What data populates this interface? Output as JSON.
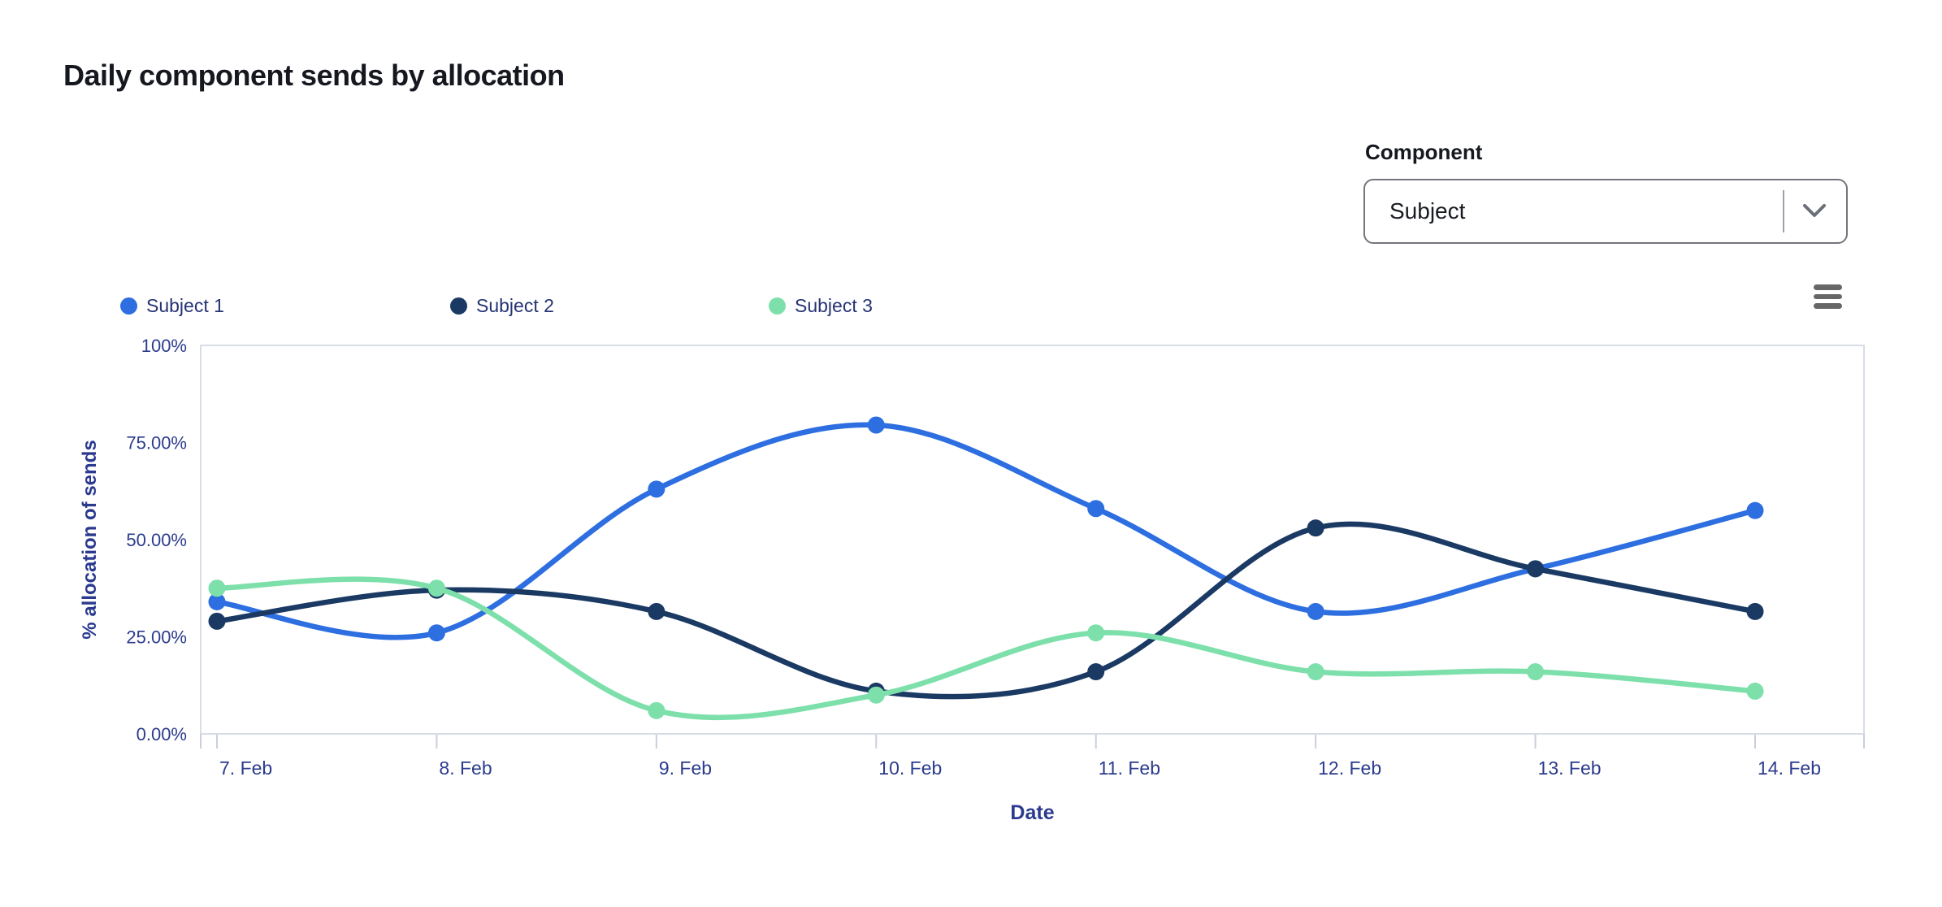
{
  "page": {
    "title": "Daily component sends by allocation"
  },
  "controls": {
    "component_label": "Component",
    "component_value": "Subject"
  },
  "colors": {
    "title_text": "#16181f",
    "control_label": "#15181f",
    "dropdown_text": "#181b21",
    "dropdown_border": "#74757c",
    "divider": "#9aa0a8",
    "chevron": "#6b7078",
    "legend_text": "#263374",
    "axis_tick_text": "#2c3c8d",
    "axis_title_text": "#2b3a8f",
    "plot_border": "#d8dce6",
    "tick_mark": "#c9cfdd",
    "menu_icon": "#676767"
  },
  "chart_data": {
    "type": "line",
    "subtype": "spline",
    "title": "",
    "xlabel": "Date",
    "ylabel": "% allocation of sends",
    "categories": [
      "7. Feb",
      "8. Feb",
      "9. Feb",
      "10. Feb",
      "11. Feb",
      "12. Feb",
      "13. Feb",
      "14. Feb"
    ],
    "series": [
      {
        "name": "Subject 1",
        "color": "#2d6ee0",
        "values": [
          34,
          26,
          63,
          79.5,
          58,
          31.5,
          42.5,
          57.5
        ]
      },
      {
        "name": "Subject 2",
        "color": "#1a3a64",
        "values": [
          29,
          37,
          31.5,
          11,
          16,
          53,
          42.5,
          31.5
        ]
      },
      {
        "name": "Subject 3",
        "color": "#7de0ab",
        "values": [
          37.5,
          37.5,
          6,
          10,
          26,
          16,
          16,
          11
        ]
      }
    ],
    "ylim": [
      0,
      100
    ],
    "yticks": [
      {
        "value": 0,
        "label": "0.00%"
      },
      {
        "value": 25,
        "label": "25.00%"
      },
      {
        "value": 50,
        "label": "50.00%"
      },
      {
        "value": 75,
        "label": "75.00%"
      },
      {
        "value": 100,
        "label": "100%"
      }
    ],
    "grid": false,
    "legend_position": "top-left",
    "marker": "circle"
  }
}
